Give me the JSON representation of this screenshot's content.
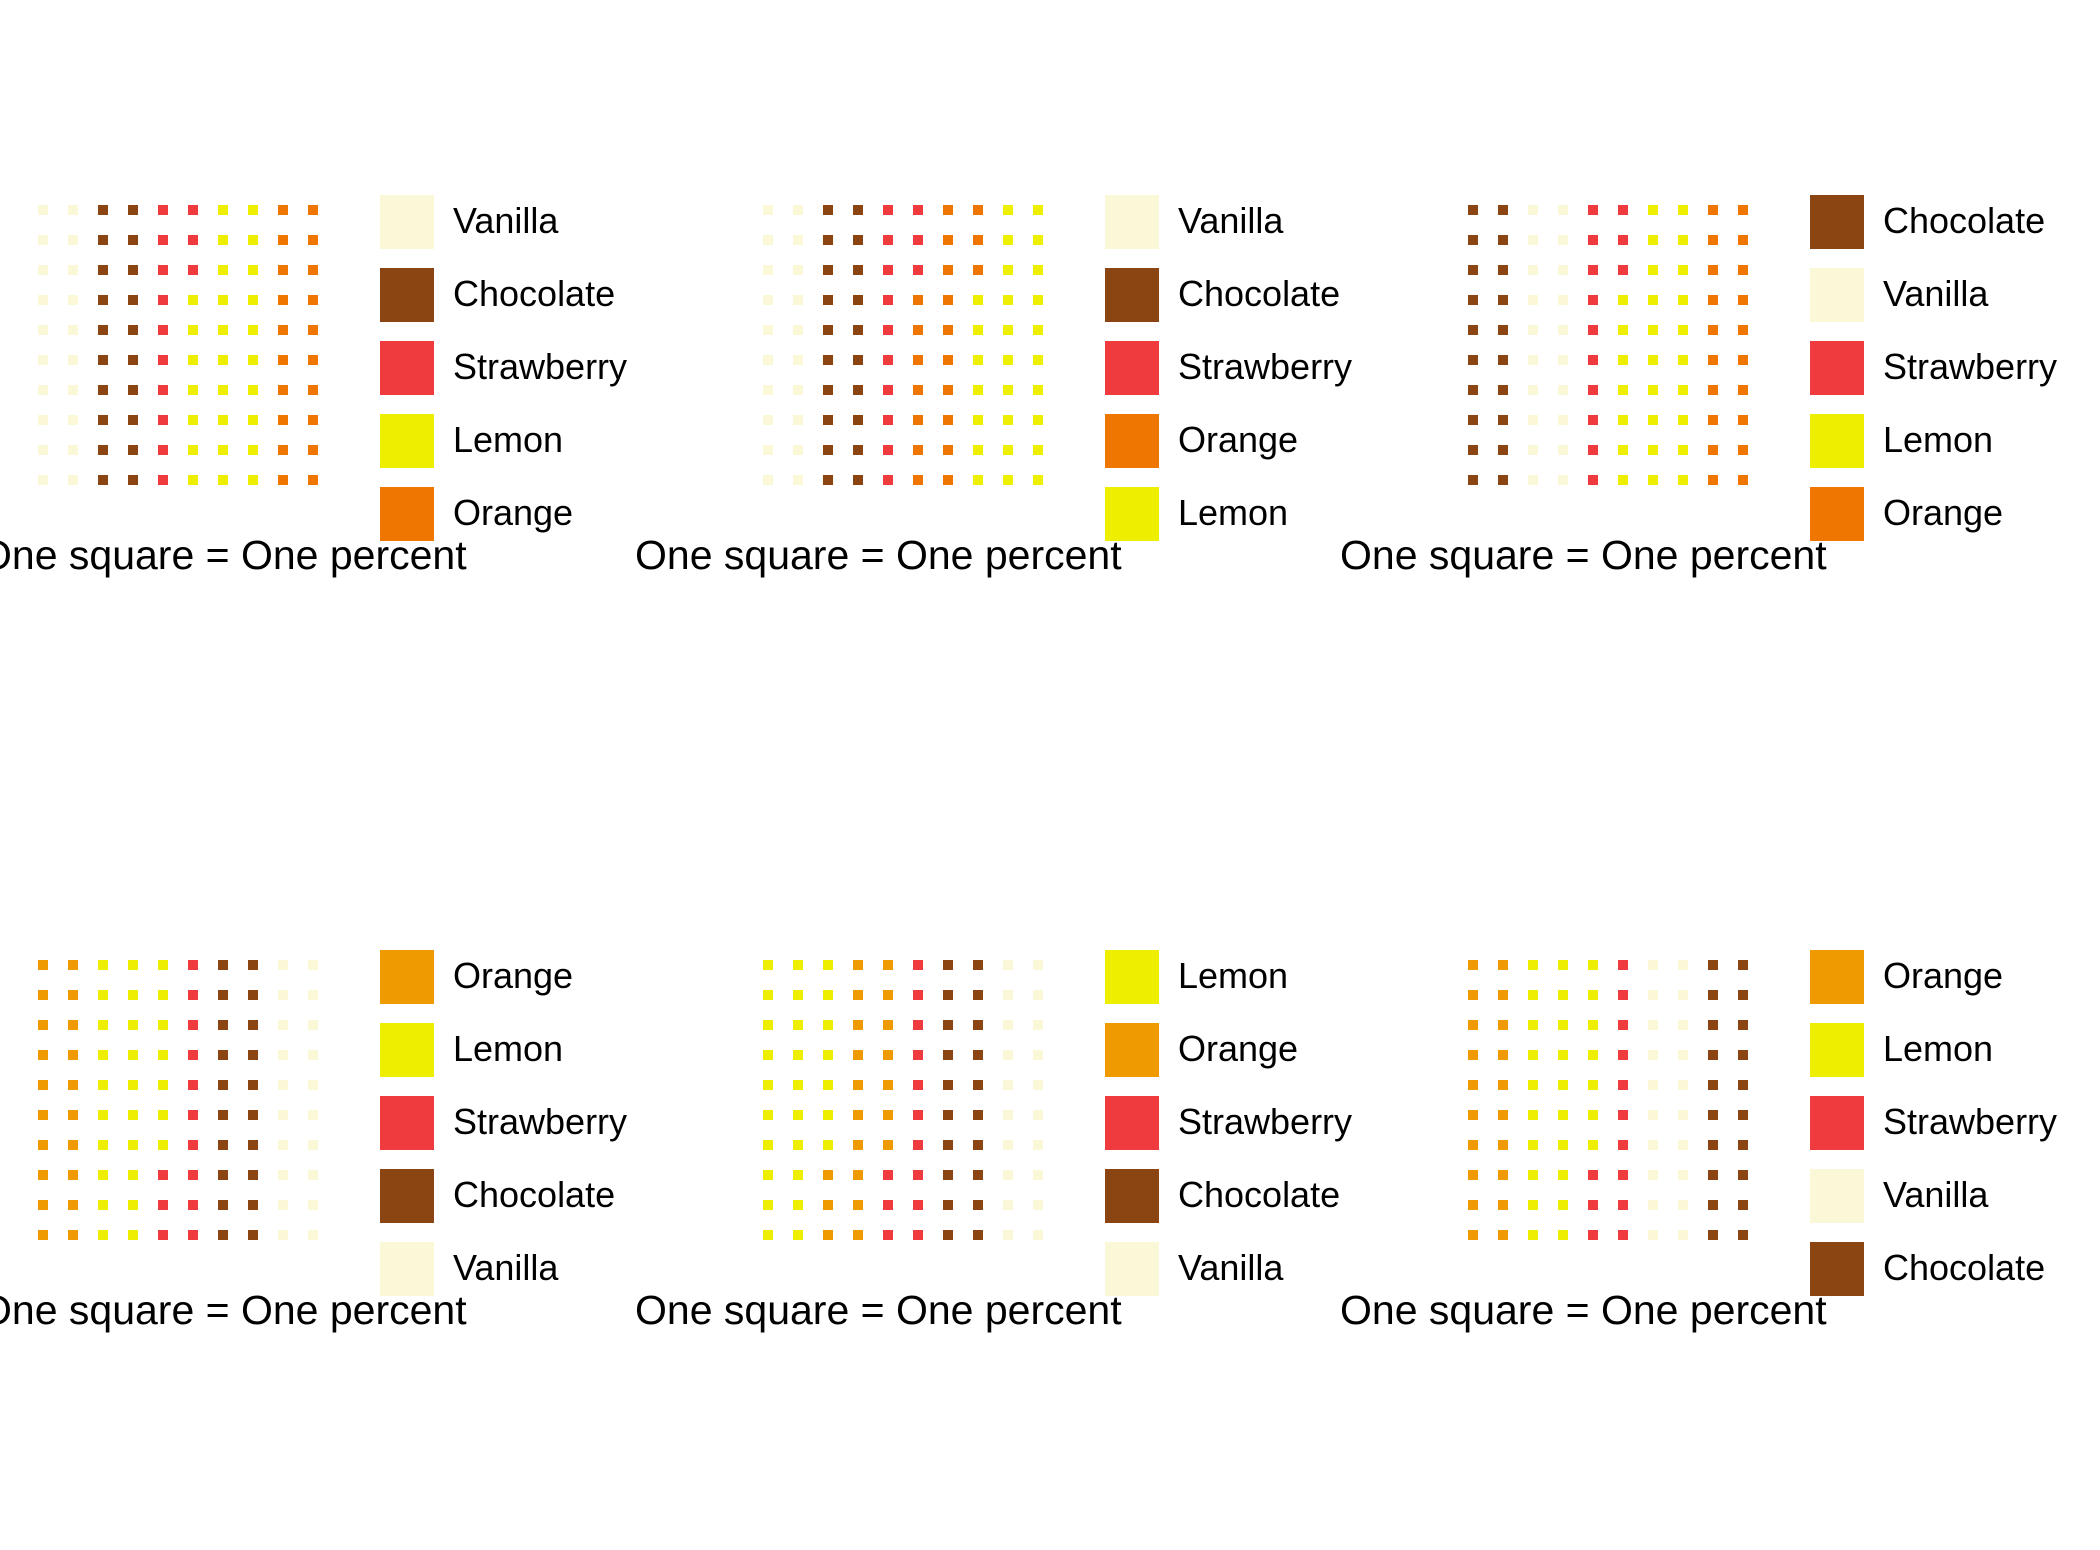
{
  "caption": "One square = One percent",
  "colors": {
    "Vanilla": "#FAF8D7",
    "Chocolate": "#8B4513",
    "Strawberry": "#EF3B3E",
    "Lemon": "#EEEE00",
    "Orange": "#EF7600",
    "Orange2": "#EF9A00"
  },
  "chart_data": [
    {
      "type": "waffle",
      "legend": [
        {
          "name": "Vanilla",
          "value": 20,
          "color": "#FAF8D7"
        },
        {
          "name": "Chocolate",
          "value": 20,
          "color": "#8B4513"
        },
        {
          "name": "Strawberry",
          "value": 13,
          "color": "#EF3B3E"
        },
        {
          "name": "Lemon",
          "value": 27,
          "color": "#EEEE00"
        },
        {
          "name": "Orange",
          "value": 20,
          "color": "#EF7600"
        }
      ],
      "caption": "One square = One percent"
    },
    {
      "type": "waffle",
      "legend": [
        {
          "name": "Vanilla",
          "value": 20,
          "color": "#FAF8D7"
        },
        {
          "name": "Chocolate",
          "value": 20,
          "color": "#8B4513"
        },
        {
          "name": "Strawberry",
          "value": 13,
          "color": "#EF3B3E"
        },
        {
          "name": "Orange",
          "value": 20,
          "color": "#EF7600"
        },
        {
          "name": "Lemon",
          "value": 27,
          "color": "#EEEE00"
        }
      ],
      "caption": "One square = One percent"
    },
    {
      "type": "waffle",
      "legend": [
        {
          "name": "Chocolate",
          "value": 20,
          "color": "#8B4513"
        },
        {
          "name": "Vanilla",
          "value": 20,
          "color": "#FAF8D7"
        },
        {
          "name": "Strawberry",
          "value": 13,
          "color": "#EF3B3E"
        },
        {
          "name": "Lemon",
          "value": 27,
          "color": "#EEEE00"
        },
        {
          "name": "Orange",
          "value": 20,
          "color": "#EF7600"
        }
      ],
      "caption": "One square = One percent"
    },
    {
      "type": "waffle",
      "legend": [
        {
          "name": "Orange",
          "value": 20,
          "color": "#EF9A00"
        },
        {
          "name": "Lemon",
          "value": 27,
          "color": "#EEEE00"
        },
        {
          "name": "Strawberry",
          "value": 13,
          "color": "#EF3B3E"
        },
        {
          "name": "Chocolate",
          "value": 20,
          "color": "#8B4513"
        },
        {
          "name": "Vanilla",
          "value": 20,
          "color": "#FAF8D7"
        }
      ],
      "caption": "One square = One percent"
    },
    {
      "type": "waffle",
      "legend": [
        {
          "name": "Lemon",
          "value": 27,
          "color": "#EEEE00"
        },
        {
          "name": "Orange",
          "value": 20,
          "color": "#EF9A00"
        },
        {
          "name": "Strawberry",
          "value": 13,
          "color": "#EF3B3E"
        },
        {
          "name": "Chocolate",
          "value": 20,
          "color": "#8B4513"
        },
        {
          "name": "Vanilla",
          "value": 20,
          "color": "#FAF8D7"
        }
      ],
      "caption": "One square = One percent"
    },
    {
      "type": "waffle",
      "legend": [
        {
          "name": "Orange",
          "value": 20,
          "color": "#EF9A00"
        },
        {
          "name": "Lemon",
          "value": 27,
          "color": "#EEEE00"
        },
        {
          "name": "Strawberry",
          "value": 13,
          "color": "#EF3B3E"
        },
        {
          "name": "Vanilla",
          "value": 20,
          "color": "#FAF8D7"
        },
        {
          "name": "Chocolate",
          "value": 20,
          "color": "#8B4513"
        }
      ],
      "caption": "One square = One percent"
    }
  ]
}
